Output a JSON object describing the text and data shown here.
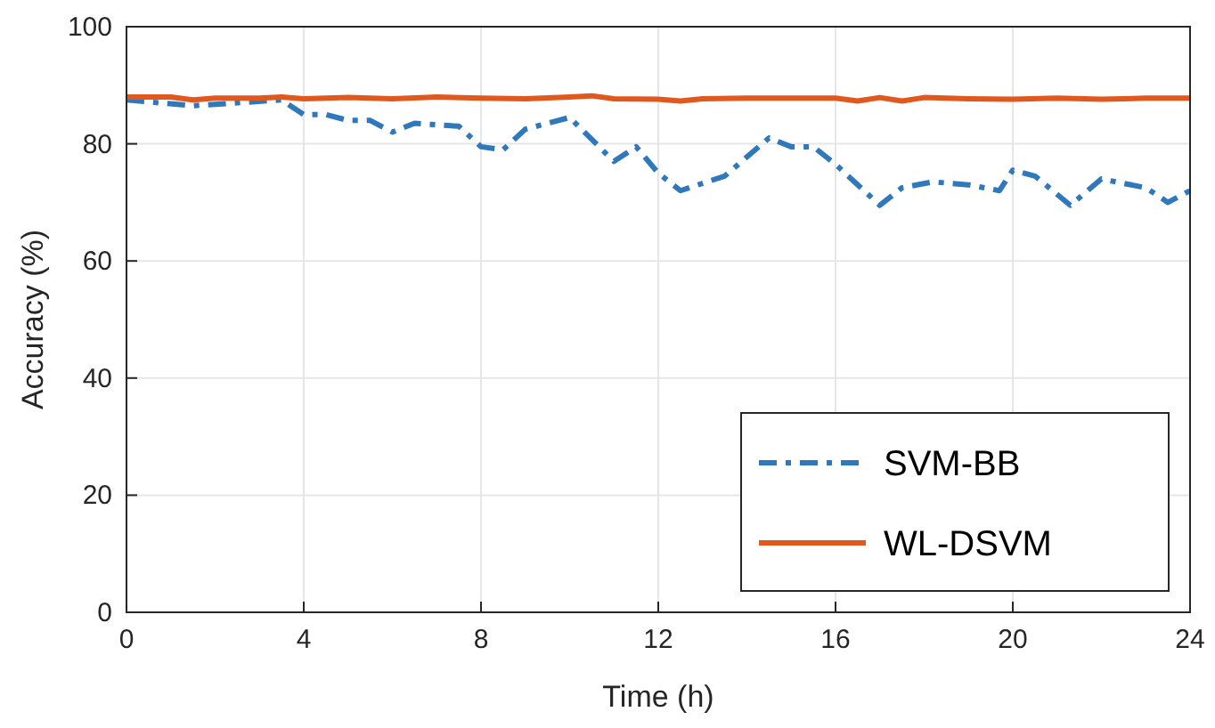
{
  "chart_data": {
    "type": "line",
    "xlabel": "Time (h)",
    "ylabel": "Accuracy (%)",
    "xlim": [
      0,
      24
    ],
    "ylim": [
      0,
      100
    ],
    "xticks": [
      0,
      4,
      8,
      12,
      16,
      20,
      24
    ],
    "yticks": [
      0,
      20,
      40,
      60,
      80,
      100
    ],
    "grid": true,
    "legend": "bottom right",
    "series": [
      {
        "name": "SVM-BB",
        "color": "#2e78bb",
        "line_style": "dashdot",
        "x": [
          0,
          1.5,
          3.5,
          4,
          4.5,
          5,
          5.5,
          6,
          6.5,
          7.5,
          8,
          8.5,
          9,
          10,
          11,
          11.5,
          12,
          12.5,
          13.5,
          14.5,
          15,
          15.5,
          16,
          17,
          17.5,
          18.2,
          19,
          19.7,
          20,
          20.5,
          21.3,
          22,
          23,
          23.5,
          24
        ],
        "values": [
          87.5,
          86.5,
          87.5,
          85,
          85,
          84,
          84,
          82,
          83.5,
          83,
          79.5,
          79,
          82.5,
          84.5,
          77,
          79.5,
          75,
          72,
          74.5,
          81,
          79.5,
          79.5,
          76.5,
          69.5,
          72.5,
          73.5,
          73,
          72,
          75.5,
          74.5,
          69.5,
          74,
          72.5,
          70,
          72
        ]
      },
      {
        "name": "WL-DSVM",
        "color": "#e0581e",
        "line_style": "solid",
        "x": [
          0,
          1,
          1.5,
          2,
          3,
          3.5,
          4,
          5,
          6,
          7,
          8,
          9,
          10,
          10.5,
          11,
          12,
          12.5,
          13,
          14,
          15,
          16,
          16.5,
          17,
          17.5,
          18,
          19,
          20,
          21,
          22,
          23,
          24
        ],
        "values": [
          88,
          88,
          87.5,
          87.8,
          87.8,
          88,
          87.7,
          87.9,
          87.7,
          88,
          87.8,
          87.7,
          88,
          88.2,
          87.7,
          87.6,
          87.3,
          87.7,
          87.8,
          87.8,
          87.8,
          87.3,
          87.9,
          87.3,
          87.9,
          87.7,
          87.6,
          87.8,
          87.6,
          87.8,
          87.8
        ]
      }
    ]
  }
}
